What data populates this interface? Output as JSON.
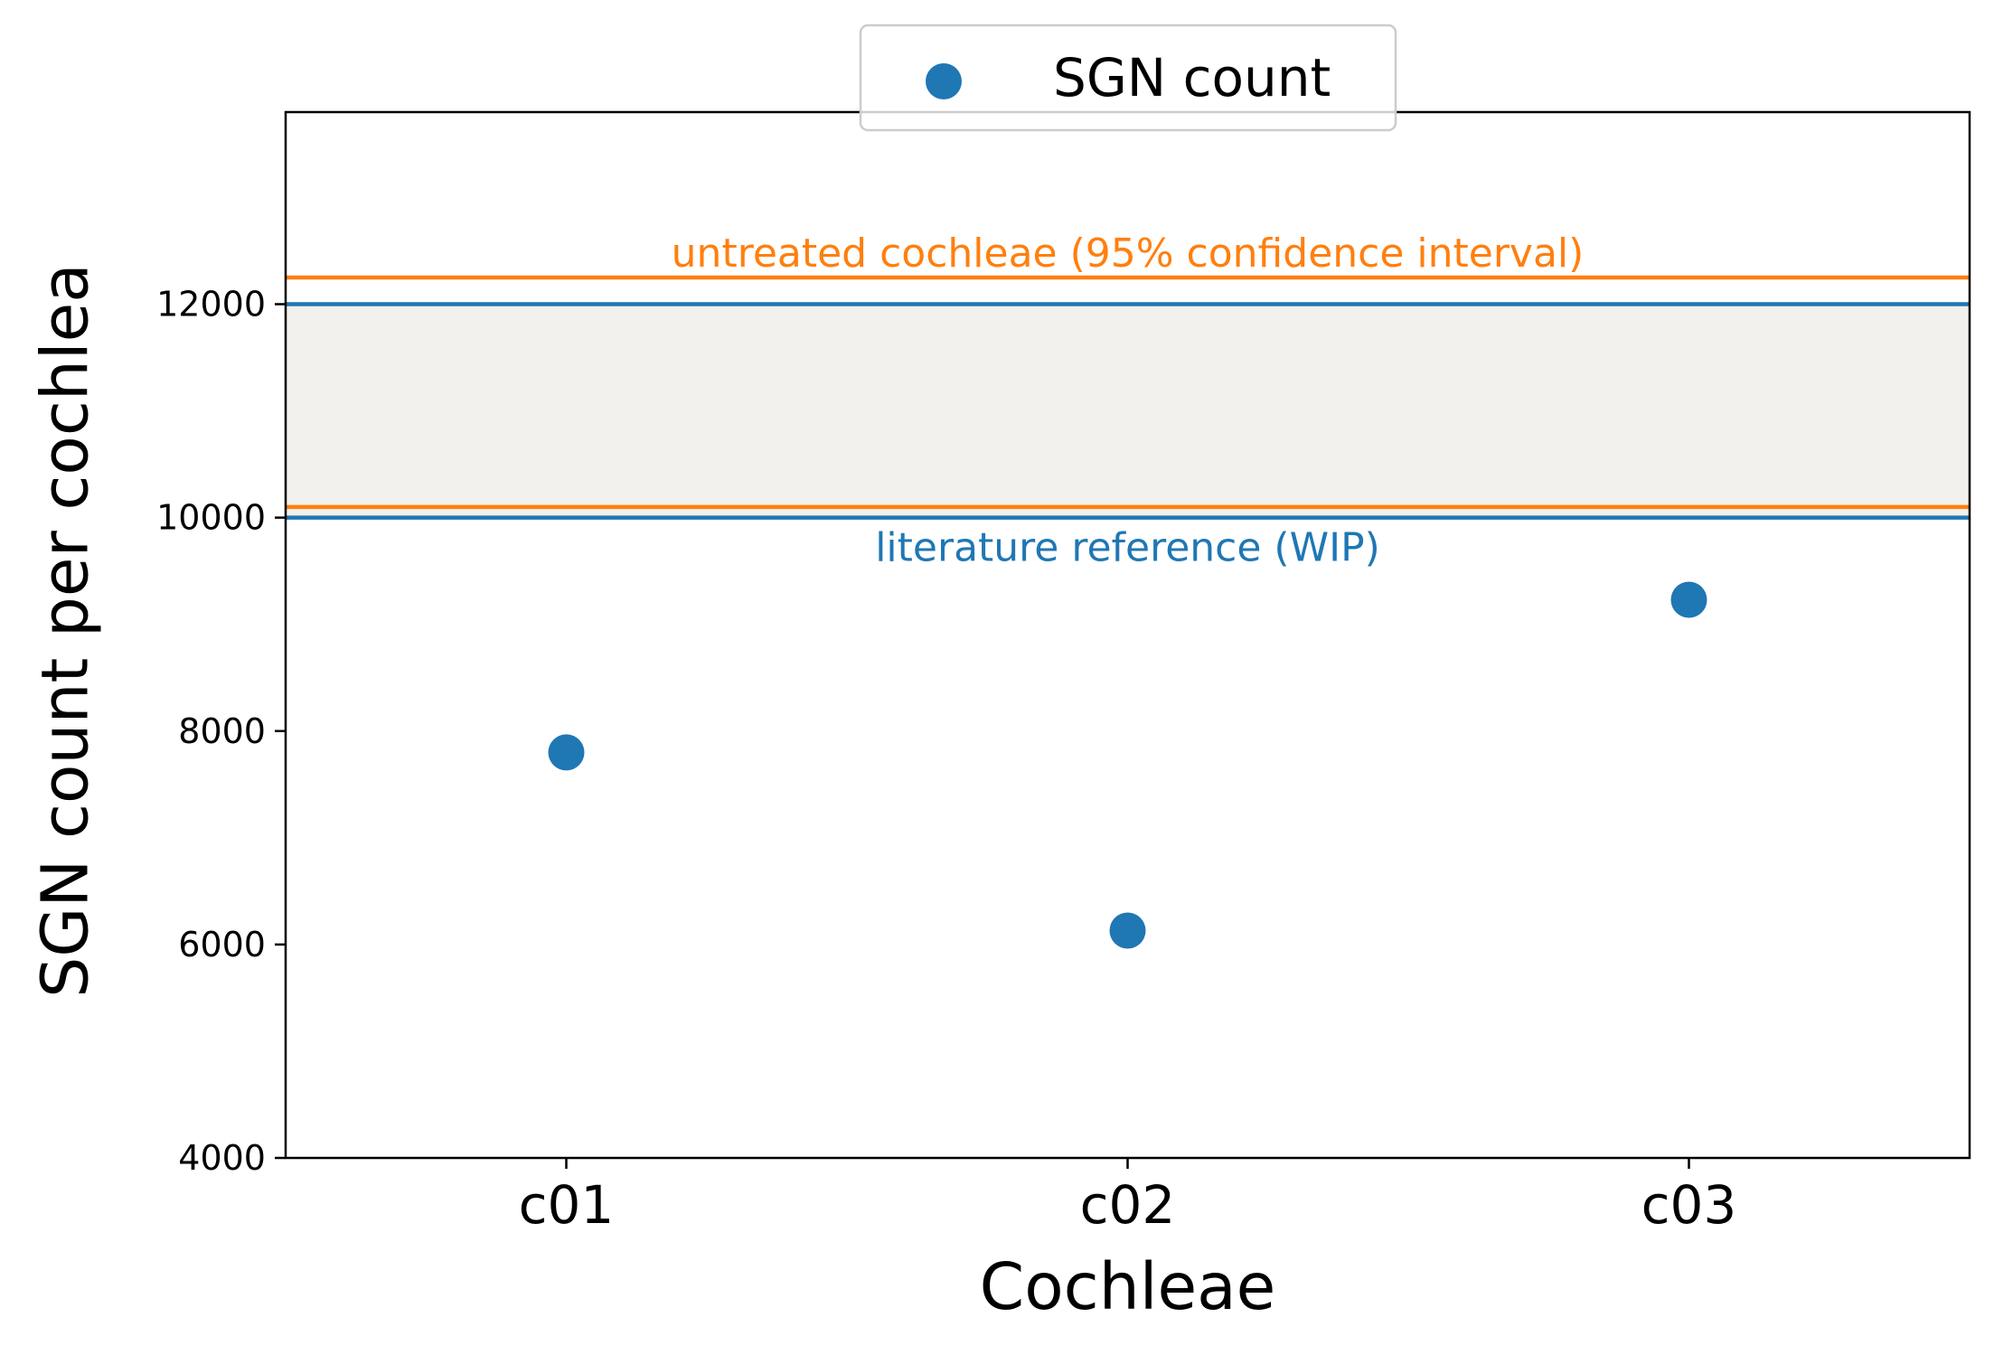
{
  "chart_data": {
    "type": "scatter",
    "title": "",
    "xlabel": "Cochleae",
    "ylabel": "SGN count per cochlea",
    "categories": [
      "c01",
      "c02",
      "c03"
    ],
    "series": [
      {
        "name": "SGN count",
        "color": "#1f77b4",
        "values": [
          7800,
          6130,
          9230
        ]
      }
    ],
    "ylim": [
      4000,
      13800
    ],
    "yticks": [
      4000,
      6000,
      8000,
      10000,
      12000
    ],
    "ytick_labels": [
      "4000",
      "6000",
      "8000",
      "10000",
      "12000"
    ],
    "reference_bands": [
      {
        "label": "literature reference (WIP)",
        "color": "#1f77b4",
        "lower": 10000,
        "upper": 12000,
        "label_position": "below"
      },
      {
        "label": "untreated cochleae (95% confidence interval)",
        "color": "#ff7f0e",
        "lower": 10100,
        "upper": 12250,
        "label_position": "above"
      }
    ],
    "band_fill_color": "#f2f0ed",
    "grid": false,
    "legend_position": "top-center"
  }
}
